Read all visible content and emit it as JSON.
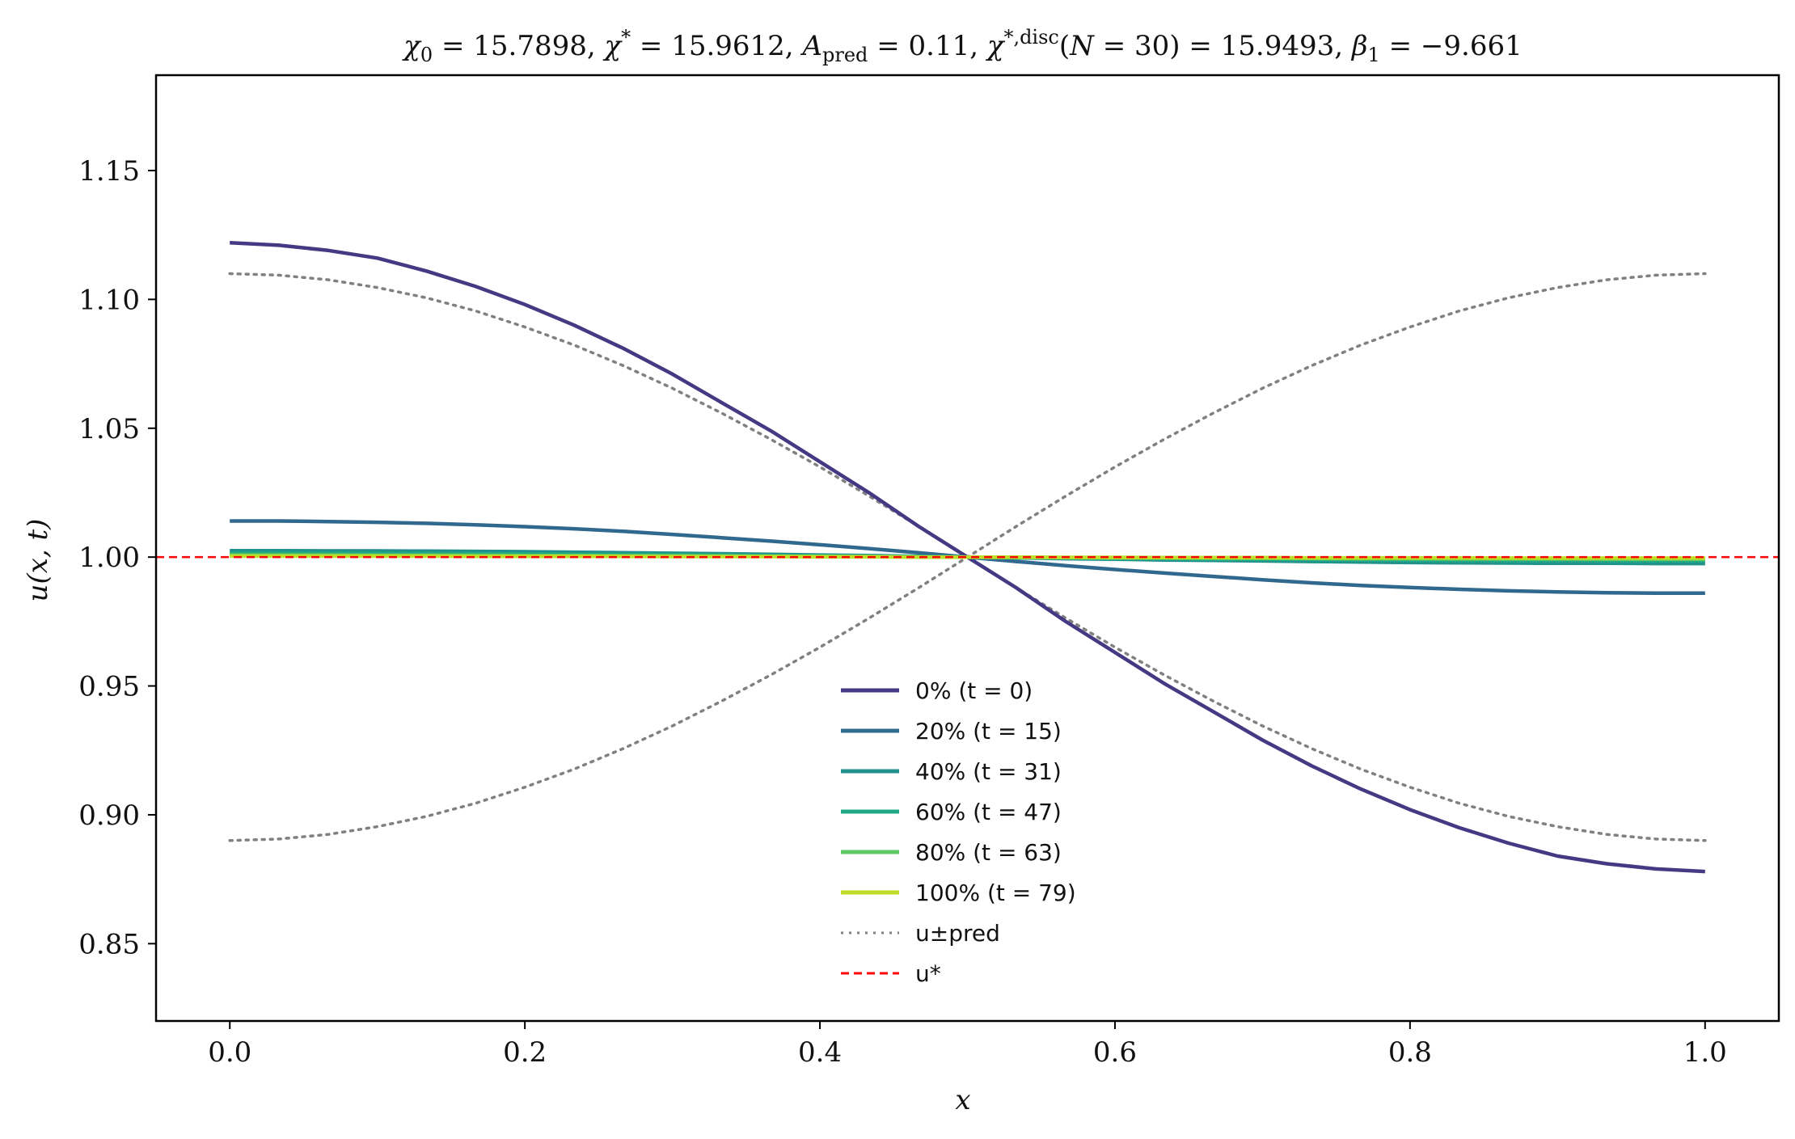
{
  "chart_data": {
    "type": "line",
    "title": "χ₀ = 15.7898,  χ* = 15.9612,  A_pred = 0.11,  χ*,disc(N = 30) = 15.9493,  β₁ = −9.661",
    "xlabel": "x",
    "ylabel": "u(x, t)",
    "xlim": [
      -0.05,
      1.05
    ],
    "ylim": [
      0.82,
      1.187
    ],
    "xticks": [
      0.0,
      0.2,
      0.4,
      0.6,
      0.8,
      1.0
    ],
    "xtick_labels": [
      "0.0",
      "0.2",
      "0.4",
      "0.6",
      "0.8",
      "1.0"
    ],
    "yticks": [
      0.85,
      0.9,
      0.95,
      1.0,
      1.05,
      1.1,
      1.15
    ],
    "ytick_labels": [
      "0.85",
      "0.90",
      "0.95",
      "1.00",
      "1.05",
      "1.10",
      "1.15"
    ],
    "grid": false,
    "legend_position": "lower-center",
    "x": [
      0.0,
      0.0333,
      0.0667,
      0.1,
      0.1333,
      0.1667,
      0.2,
      0.2333,
      0.2667,
      0.3,
      0.3333,
      0.3667,
      0.4,
      0.4333,
      0.4667,
      0.5,
      0.5333,
      0.5667,
      0.6,
      0.6333,
      0.6667,
      0.7,
      0.7333,
      0.7667,
      0.8,
      0.8333,
      0.8667,
      0.9,
      0.9333,
      0.9667,
      1.0
    ],
    "series": [
      {
        "name": "0% (t = 0)",
        "color": "#443983",
        "style": "solid",
        "values": [
          1.122,
          1.121,
          1.119,
          1.116,
          1.111,
          1.105,
          1.098,
          1.09,
          1.081,
          1.071,
          1.06,
          1.049,
          1.037,
          1.025,
          1.012,
          1.0,
          0.988,
          0.975,
          0.963,
          0.951,
          0.94,
          0.929,
          0.919,
          0.91,
          0.902,
          0.895,
          0.889,
          0.884,
          0.881,
          0.879,
          0.878
        ]
      },
      {
        "name": "20% (t = 15)",
        "color": "#31688e",
        "style": "solid",
        "values": [
          1.014,
          1.014,
          1.0138,
          1.0135,
          1.0131,
          1.0125,
          1.0118,
          1.011,
          1.01,
          1.0088,
          1.0075,
          1.0062,
          1.0048,
          1.0033,
          1.0017,
          1.0,
          0.9983,
          0.9967,
          0.9952,
          0.9938,
          0.9925,
          0.9912,
          0.99,
          0.989,
          0.9882,
          0.9875,
          0.9869,
          0.9865,
          0.9862,
          0.986,
          0.986
        ]
      },
      {
        "name": "40% (t = 31)",
        "color": "#21918c",
        "style": "solid",
        "values": [
          1.0025,
          1.0025,
          1.0024,
          1.0024,
          1.0023,
          1.0022,
          1.0021,
          1.0019,
          1.0017,
          1.0015,
          1.0013,
          1.0011,
          1.0008,
          1.0006,
          1.0003,
          1.0,
          0.9997,
          0.9994,
          0.9992,
          0.9989,
          0.9987,
          0.9985,
          0.9983,
          0.9981,
          0.9979,
          0.9978,
          0.9977,
          0.9976,
          0.9976,
          0.9975,
          0.9975
        ]
      },
      {
        "name": "60% (t = 47)",
        "color": "#22a884",
        "style": "solid",
        "values": [
          1.0015,
          1.0015,
          1.0015,
          1.0014,
          1.0014,
          1.0013,
          1.0012,
          1.0011,
          1.001,
          1.0009,
          1.0008,
          1.0006,
          1.0005,
          1.0003,
          1.0002,
          1.0,
          0.9998,
          0.9997,
          0.9995,
          0.9994,
          0.9992,
          0.9991,
          0.999,
          0.9989,
          0.9988,
          0.9987,
          0.9986,
          0.9986,
          0.9985,
          0.9985,
          0.9985
        ]
      },
      {
        "name": "80% (t = 63)",
        "color": "#5ec962",
        "style": "solid",
        "values": [
          1.0008,
          1.0008,
          1.0008,
          1.0007,
          1.0007,
          1.0007,
          1.0006,
          1.0006,
          1.0005,
          1.0005,
          1.0004,
          1.0003,
          1.0003,
          1.0002,
          1.0001,
          1.0,
          0.9999,
          0.9998,
          0.9997,
          0.9997,
          0.9996,
          0.9995,
          0.9995,
          0.9994,
          0.9994,
          0.9993,
          0.9993,
          0.9993,
          0.9992,
          0.9992,
          0.9992
        ]
      },
      {
        "name": "100% (t = 79)",
        "color": "#bddf26",
        "style": "solid",
        "values": [
          1.0004,
          1.0004,
          1.0004,
          1.0004,
          1.0004,
          1.0003,
          1.0003,
          1.0003,
          1.0003,
          1.0002,
          1.0002,
          1.0002,
          1.0001,
          1.0001,
          1.0,
          1.0,
          1.0,
          0.9999,
          0.9999,
          0.9998,
          0.9998,
          0.9998,
          0.9997,
          0.9997,
          0.9997,
          0.9997,
          0.9996,
          0.9996,
          0.9996,
          0.9996,
          0.9996
        ]
      },
      {
        "name": "u±pred",
        "color": "#808080",
        "style": "dotted",
        "values": [
          1.11,
          1.1094,
          1.1076,
          1.1046,
          1.1006,
          1.0955,
          1.0893,
          1.0823,
          1.0743,
          1.0655,
          1.0559,
          1.0457,
          1.035,
          1.0237,
          1.012,
          1.0,
          0.988,
          0.9763,
          0.965,
          0.9543,
          0.9441,
          0.9345,
          0.9257,
          0.9177,
          0.9107,
          0.9045,
          0.8994,
          0.8954,
          0.8924,
          0.8906,
          0.89
        ]
      },
      {
        "name": "",
        "color": "#808080",
        "style": "dotted",
        "values": [
          0.89,
          0.8906,
          0.8924,
          0.8954,
          0.8994,
          0.9045,
          0.9107,
          0.9177,
          0.9257,
          0.9345,
          0.9441,
          0.9543,
          0.965,
          0.9763,
          0.988,
          1.0,
          1.012,
          1.0237,
          1.035,
          1.0457,
          1.0559,
          1.0655,
          1.0743,
          1.0823,
          1.0893,
          1.0955,
          1.1006,
          1.1046,
          1.1076,
          1.1094,
          1.11
        ]
      }
    ],
    "reference_line": {
      "name": "u*",
      "y": 1.0,
      "color": "#ff0000",
      "style": "dashed"
    },
    "legend": [
      {
        "label": "0% (t = 0)",
        "color": "#443983",
        "style": "solid"
      },
      {
        "label": "20% (t = 15)",
        "color": "#31688e",
        "style": "solid"
      },
      {
        "label": "40% (t = 31)",
        "color": "#21918c",
        "style": "solid"
      },
      {
        "label": "60% (t = 47)",
        "color": "#22a884",
        "style": "solid"
      },
      {
        "label": "80% (t = 63)",
        "color": "#5ec962",
        "style": "solid"
      },
      {
        "label": "100% (t = 79)",
        "color": "#bddf26",
        "style": "solid"
      },
      {
        "label": "u±pred",
        "color": "#808080",
        "style": "dotted"
      },
      {
        "label": "u*",
        "color": "#ff0000",
        "style": "dashed"
      }
    ]
  }
}
